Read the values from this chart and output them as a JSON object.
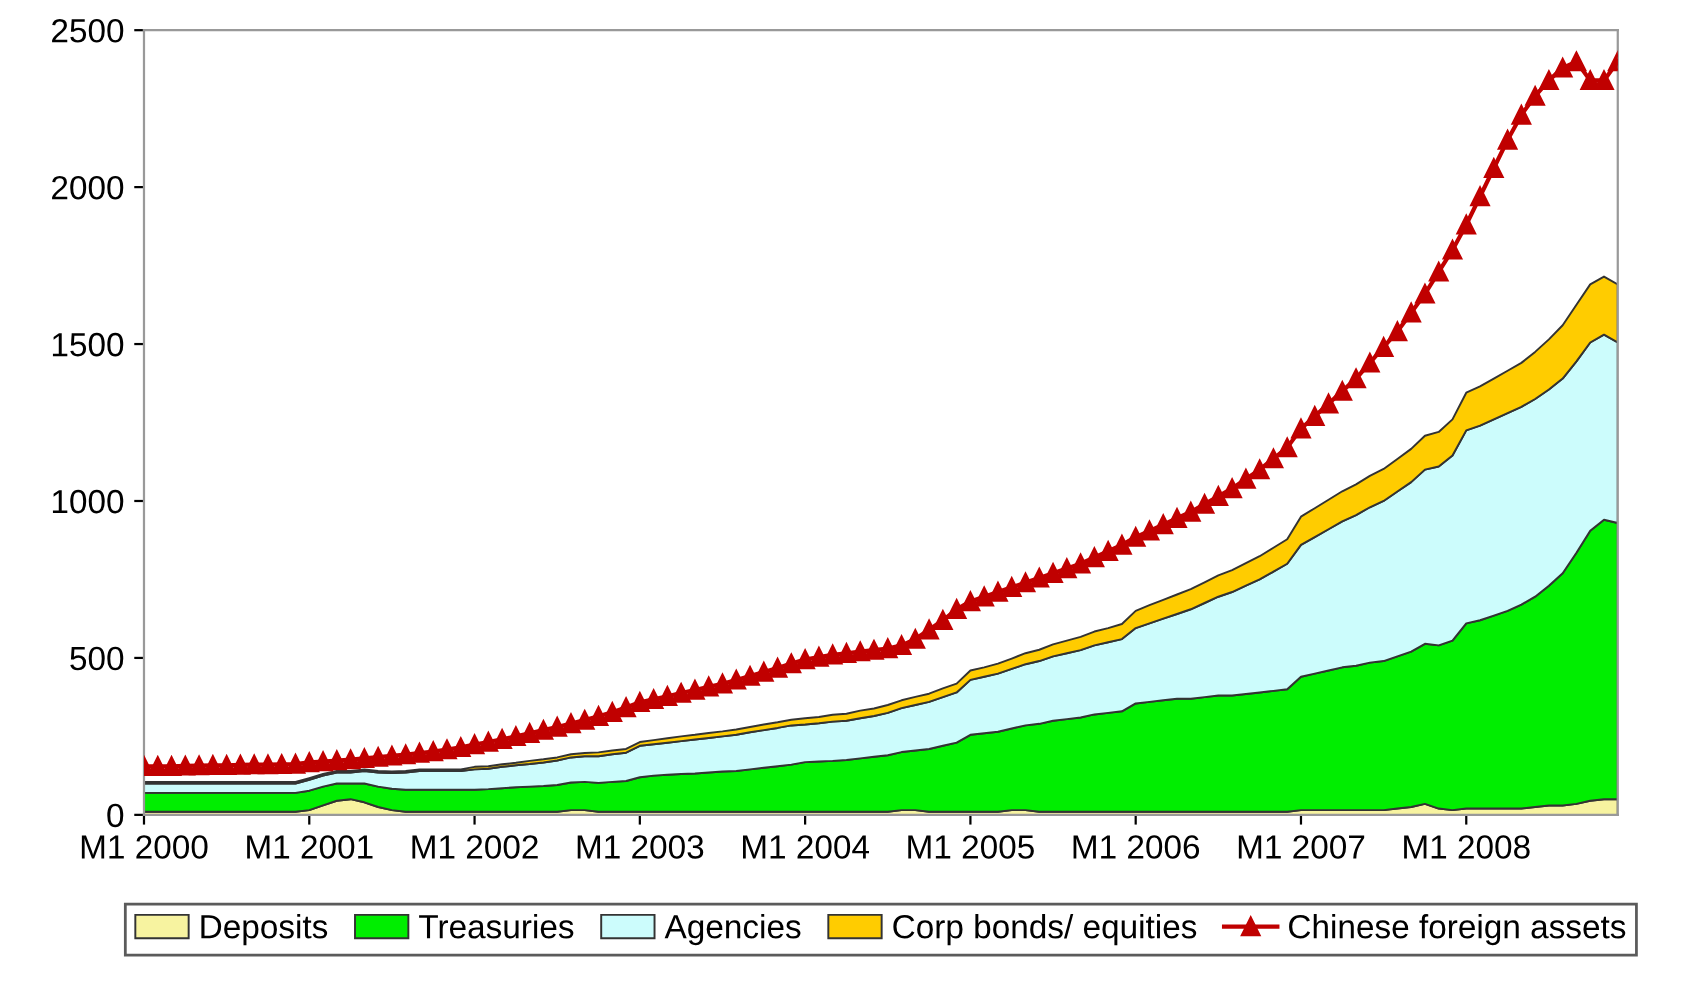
{
  "chart_data": {
    "type": "area",
    "stacked": true,
    "categories": [
      "M1 2000",
      null,
      null,
      null,
      null,
      null,
      null,
      null,
      null,
      null,
      null,
      null,
      "M1 2001",
      null,
      null,
      null,
      null,
      null,
      null,
      null,
      null,
      null,
      null,
      null,
      "M1 2002",
      null,
      null,
      null,
      null,
      null,
      null,
      null,
      null,
      null,
      null,
      null,
      "M1 2003",
      null,
      null,
      null,
      null,
      null,
      null,
      null,
      null,
      null,
      null,
      null,
      "M1 2004",
      null,
      null,
      null,
      null,
      null,
      null,
      null,
      null,
      null,
      null,
      null,
      "M1 2005",
      null,
      null,
      null,
      null,
      null,
      null,
      null,
      null,
      null,
      null,
      null,
      "M1 2006",
      null,
      null,
      null,
      null,
      null,
      null,
      null,
      null,
      null,
      null,
      null,
      "M1 2007",
      null,
      null,
      null,
      null,
      null,
      null,
      null,
      null,
      null,
      null,
      null,
      "M1 2008",
      null,
      null,
      null,
      null,
      null,
      null,
      null,
      null,
      null,
      null,
      null
    ],
    "series": [
      {
        "name": "Deposits",
        "color": "#f7f3a0",
        "values": [
          10,
          10,
          10,
          10,
          10,
          10,
          10,
          10,
          10,
          10,
          10,
          10,
          15,
          30,
          45,
          50,
          40,
          25,
          15,
          10,
          10,
          10,
          10,
          10,
          10,
          10,
          10,
          10,
          10,
          10,
          10,
          15,
          15,
          10,
          10,
          10,
          10,
          10,
          10,
          10,
          10,
          10,
          10,
          10,
          10,
          10,
          10,
          10,
          10,
          10,
          10,
          10,
          10,
          10,
          10,
          15,
          15,
          10,
          10,
          10,
          10,
          10,
          10,
          15,
          15,
          10,
          10,
          10,
          10,
          10,
          10,
          10,
          10,
          10,
          10,
          10,
          10,
          10,
          10,
          10,
          10,
          10,
          10,
          10,
          15,
          15,
          15,
          15,
          15,
          15,
          15,
          20,
          25,
          35,
          20,
          15,
          20,
          20,
          20,
          20,
          20,
          25,
          30,
          30,
          35,
          45,
          50,
          50
        ]
      },
      {
        "name": "Treasuries",
        "color": "#00ee00",
        "values": [
          60,
          60,
          60,
          60,
          60,
          60,
          60,
          60,
          60,
          60,
          60,
          60,
          62,
          60,
          55,
          50,
          60,
          65,
          68,
          70,
          70,
          70,
          70,
          70,
          70,
          72,
          75,
          78,
          80,
          82,
          85,
          88,
          90,
          92,
          95,
          98,
          110,
          115,
          118,
          120,
          122,
          125,
          128,
          130,
          135,
          140,
          145,
          150,
          158,
          160,
          162,
          165,
          170,
          175,
          180,
          185,
          190,
          200,
          210,
          220,
          245,
          250,
          255,
          260,
          270,
          280,
          290,
          295,
          300,
          310,
          315,
          320,
          345,
          350,
          355,
          360,
          360,
          365,
          370,
          370,
          375,
          380,
          385,
          390,
          425,
          435,
          445,
          455,
          460,
          470,
          475,
          485,
          495,
          510,
          520,
          540,
          590,
          600,
          615,
          630,
          650,
          670,
          700,
          740,
          800,
          860,
          890,
          880
        ]
      },
      {
        "name": "Agencies",
        "color": "#ccfcfc",
        "values": [
          30,
          30,
          30,
          30,
          30,
          30,
          30,
          30,
          30,
          30,
          30,
          30,
          35,
          35,
          35,
          35,
          40,
          45,
          50,
          55,
          60,
          60,
          60,
          60,
          65,
          65,
          68,
          70,
          72,
          75,
          78,
          80,
          82,
          85,
          88,
          90,
          100,
          100,
          102,
          105,
          108,
          110,
          112,
          115,
          118,
          120,
          122,
          125,
          120,
          122,
          125,
          125,
          128,
          130,
          135,
          140,
          145,
          150,
          155,
          160,
          175,
          180,
          185,
          190,
          195,
          200,
          205,
          210,
          215,
          220,
          225,
          230,
          240,
          250,
          260,
          270,
          285,
          300,
          315,
          330,
          345,
          360,
          380,
          400,
          420,
          435,
          450,
          465,
          480,
          495,
          510,
          525,
          540,
          555,
          570,
          590,
          615,
          620,
          625,
          630,
          630,
          630,
          625,
          620,
          610,
          600,
          590,
          575
        ]
      },
      {
        "name": "Corp bonds/ equities",
        "color": "#ffcc00",
        "values": [
          5,
          5,
          5,
          5,
          5,
          5,
          5,
          5,
          5,
          5,
          5,
          5,
          5,
          5,
          5,
          5,
          5,
          5,
          5,
          5,
          5,
          5,
          5,
          5,
          8,
          8,
          8,
          8,
          10,
          10,
          10,
          10,
          10,
          12,
          12,
          12,
          12,
          13,
          14,
          15,
          15,
          16,
          16,
          17,
          17,
          18,
          18,
          18,
          20,
          20,
          22,
          22,
          24,
          24,
          25,
          25,
          26,
          26,
          28,
          28,
          30,
          30,
          32,
          33,
          35,
          36,
          38,
          40,
          42,
          44,
          45,
          48,
          55,
          58,
          60,
          62,
          64,
          66,
          68,
          70,
          72,
          74,
          76,
          78,
          90,
          92,
          94,
          96,
          98,
          100,
          102,
          104,
          106,
          108,
          110,
          115,
          120,
          125,
          130,
          135,
          140,
          150,
          160,
          170,
          180,
          185,
          185,
          185
        ]
      },
      {
        "name": "Chinese foreign assets",
        "type": "line",
        "color": "#c00000",
        "marker": "triangle",
        "values": [
          155,
          155,
          155,
          156,
          157,
          158,
          158,
          159,
          160,
          160,
          161,
          162,
          167,
          170,
          173,
          176,
          180,
          184,
          188,
          192,
          197,
          202,
          208,
          215,
          224,
          232,
          241,
          250,
          260,
          270,
          280,
          291,
          302,
          314,
          327,
          342,
          359,
          368,
          378,
          388,
          398,
          408,
          418,
          430,
          442,
          455,
          468,
          482,
          495,
          503,
          510,
          515,
          520,
          525,
          530,
          540,
          560,
          590,
          620,
          655,
          680,
          695,
          710,
          725,
          740,
          755,
          770,
          785,
          800,
          820,
          840,
          860,
          885,
          905,
          925,
          945,
          965,
          990,
          1015,
          1040,
          1070,
          1100,
          1135,
          1170,
          1230,
          1270,
          1310,
          1350,
          1390,
          1440,
          1490,
          1540,
          1600,
          1660,
          1730,
          1800,
          1880,
          1970,
          2060,
          2150,
          2230,
          2290,
          2340,
          2380,
          2400,
          2340,
          2340,
          2400
        ]
      }
    ],
    "ylim": [
      0,
      2500
    ],
    "yticks": [
      0,
      500,
      1000,
      1500,
      2000,
      2500
    ],
    "grid": false,
    "legend": "bottom"
  }
}
